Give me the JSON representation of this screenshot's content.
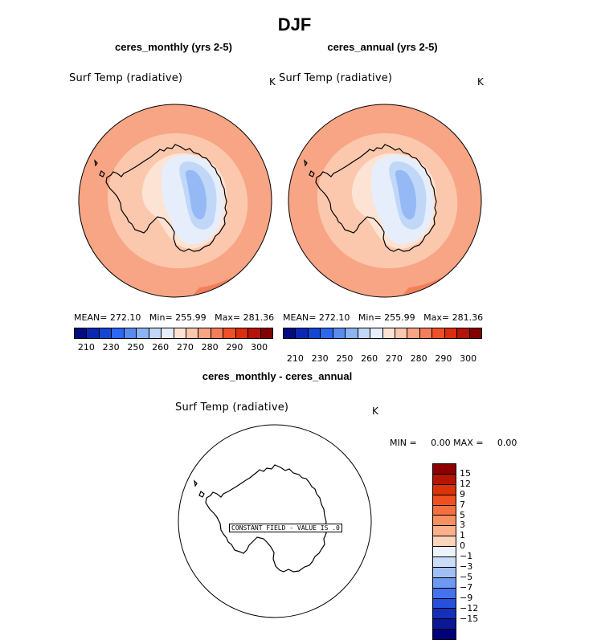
{
  "title": "DJF",
  "panels": [
    {
      "name": "ceres_monthly (yrs 2-5)",
      "variable": "Surf Temp (radiative)",
      "units": "K",
      "mean_label": "MEAN=",
      "mean": "272.10",
      "min_label": "Min=",
      "min": "255.99",
      "max_label": "Max=",
      "max": "281.36"
    },
    {
      "name": "ceres_annual (yrs 2-5)",
      "variable": "Surf Temp (radiative)",
      "units": "K",
      "mean_label": "MEAN=",
      "mean": "272.10",
      "min_label": "Min=",
      "min": "255.99",
      "max_label": "Max=",
      "max": "281.36"
    }
  ],
  "colorbar": {
    "colors": [
      "#000c80",
      "#0a28b4",
      "#1446d2",
      "#2d66f0",
      "#5a8cf0",
      "#8cb4f5",
      "#c0d7f8",
      "#e6eefc",
      "#fde3d4",
      "#fbc8ad",
      "#f7a585",
      "#f47d5a",
      "#f05028",
      "#dc2d0f",
      "#b4140a",
      "#820000"
    ],
    "labels": [
      "210",
      "230",
      "250",
      "260",
      "270",
      "280",
      "290",
      "300"
    ]
  },
  "diff_panel": {
    "name": "ceres_monthly - ceres_annual",
    "variable": "Surf Temp (radiative)",
    "units": "K",
    "min_label": "MIN =",
    "min": "0.00",
    "max_label": "MAX =",
    "max": "0.00",
    "note": "CONSTANT FIELD - VALUE IS .0",
    "colors": [
      "#8c0000",
      "#b41400",
      "#dc320a",
      "#f05020",
      "#f47040",
      "#f79060",
      "#fab08a",
      "#fcd3bb",
      "#eef3fb",
      "#c9dcf8",
      "#a0c0f5",
      "#6f98f0",
      "#4573ec",
      "#2750dc",
      "#1530b8",
      "#0a1896",
      "#00007a"
    ],
    "labels": [
      "15",
      "12",
      "9",
      "7",
      "5",
      "3",
      "1",
      "0",
      "−1",
      "−3",
      "−5",
      "−7",
      "−9",
      "−12",
      "−15"
    ]
  }
}
